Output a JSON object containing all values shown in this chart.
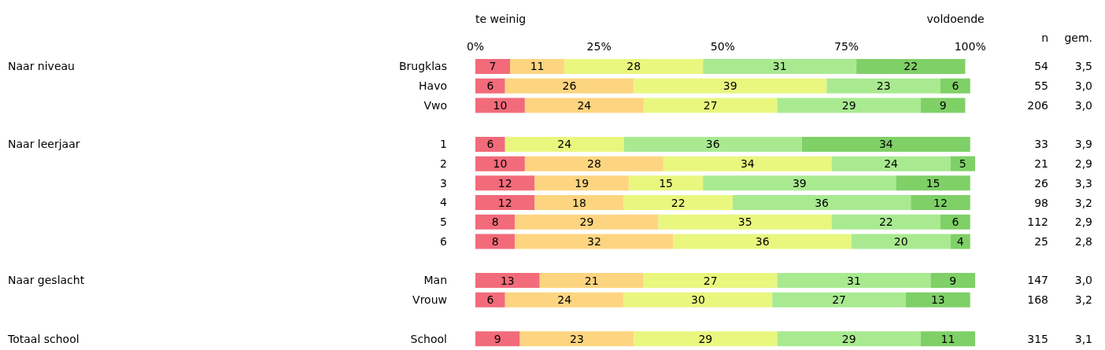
{
  "chart_data": {
    "type": "bar",
    "orientation": "horizontal",
    "stacked": true,
    "data_labels": true,
    "grid": false,
    "legend": false,
    "categories": [
      "Brugklas",
      "Havo",
      "Vwo",
      null,
      "1",
      "2",
      "3",
      "4",
      "5",
      "6",
      null,
      "Man",
      "Vrouw",
      null,
      "School"
    ],
    "series": [
      {
        "color": "#f26b7a",
        "values": [
          7,
          6,
          10,
          null,
          6,
          10,
          12,
          12,
          8,
          8,
          null,
          13,
          6,
          null,
          9
        ]
      },
      {
        "color": "#fdd580",
        "values": [
          11,
          26,
          24,
          null,
          null,
          28,
          19,
          18,
          29,
          32,
          null,
          21,
          24,
          null,
          23
        ]
      },
      {
        "color": "#e9f77f",
        "values": [
          28,
          39,
          27,
          null,
          24,
          34,
          15,
          22,
          35,
          36,
          null,
          27,
          30,
          null,
          29
        ]
      },
      {
        "color": "#a9ea91",
        "values": [
          31,
          23,
          29,
          null,
          36,
          24,
          39,
          36,
          22,
          20,
          null,
          31,
          27,
          null,
          29
        ]
      },
      {
        "color": "#7fd067",
        "values": [
          22,
          6,
          9,
          null,
          34,
          5,
          15,
          12,
          6,
          4,
          null,
          9,
          13,
          null,
          11
        ]
      }
    ],
    "xlim": [
      0,
      101
    ],
    "xticks": [
      {
        "value": 0,
        "label": "0%"
      },
      {
        "value": 25,
        "label": "25%"
      },
      {
        "value": 50,
        "label": "50%"
      },
      {
        "value": 75,
        "label": "75%"
      },
      {
        "value": 100,
        "label": "100%"
      }
    ],
    "annotations": [
      "te weinig",
      "voldoende",
      "Naar niveau",
      "Naar leerjaar",
      "Naar geslacht",
      "Totaal school",
      "n",
      "gem.",
      "54",
      "55",
      "206",
      "33",
      "21",
      "26",
      "98",
      "112",
      "25",
      "147",
      "168",
      "315",
      "3,5",
      "3,0",
      "3,0",
      "3,9",
      "2,9",
      "3,3",
      "3,2",
      "2,9",
      "2,8",
      "3,0",
      "3,2",
      "3,1"
    ]
  }
}
